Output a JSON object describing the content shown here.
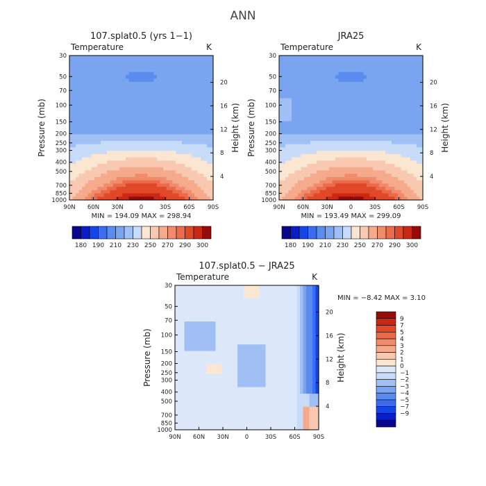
{
  "title": "ANN",
  "colors": {
    "abs_palette": [
      "#08088c",
      "#0a1ec8",
      "#1446e6",
      "#3c6cf0",
      "#5a8cf0",
      "#78a4f0",
      "#a0c0f5",
      "#c8dcfa",
      "#fbe6d2",
      "#f8c8b0",
      "#f5aa8c",
      "#f08c6c",
      "#eb6a4a",
      "#e04828",
      "#c82814",
      "#960a0a"
    ],
    "diff_palette": [
      "#08088c",
      "#0a1ec8",
      "#1446e6",
      "#3c6cf0",
      "#5a8cf0",
      "#78a4f0",
      "#a0c0f5",
      "#c8dcfa",
      "#dce8fa",
      "#fbe6d2",
      "#f8c8b0",
      "#f5aa8c",
      "#f08c6c",
      "#eb6a4a",
      "#e04828",
      "#c82814",
      "#960a0a"
    ]
  },
  "chart_data": [
    {
      "type": "heatmap",
      "title": "107.splat0.5 (yrs 1−1)",
      "left_label": "Temperature",
      "right_label": "K",
      "xlabel": "",
      "ylabel": "Pressure (mb)",
      "ylabel_right": "Height (km)",
      "x_ticks": [
        "90N",
        "60N",
        "30N",
        "0",
        "30S",
        "60S",
        "90S"
      ],
      "y_ticks": [
        "30",
        "50",
        "70",
        "100",
        "150",
        "200",
        "250",
        "300",
        "400",
        "500",
        "700",
        "850",
        "1000"
      ],
      "y_ticks_right": [
        "20",
        "16",
        "12",
        "8",
        "4"
      ],
      "stats": "MIN = 194.09   MAX = 298.94",
      "min": 194.09,
      "max": 298.94,
      "colorbar_labels": [
        "180",
        "190",
        "210",
        "230",
        "250",
        "270",
        "290",
        "300"
      ]
    },
    {
      "type": "heatmap",
      "title": "JRA25",
      "left_label": "Temperature",
      "right_label": "K",
      "xlabel": "",
      "ylabel": "Pressure (mb)",
      "ylabel_right": "Height (km)",
      "x_ticks": [
        "90N",
        "60N",
        "30N",
        "0",
        "30S",
        "60S",
        "90S"
      ],
      "y_ticks": [
        "30",
        "50",
        "70",
        "100",
        "150",
        "200",
        "250",
        "300",
        "400",
        "500",
        "700",
        "850",
        "1000"
      ],
      "y_ticks_right": [
        "20",
        "16",
        "12",
        "8",
        "4"
      ],
      "stats": "MIN = 193.49   MAX = 299.09",
      "min": 193.49,
      "max": 299.09,
      "colorbar_labels": [
        "180",
        "190",
        "210",
        "230",
        "250",
        "270",
        "290",
        "300"
      ]
    },
    {
      "type": "heatmap",
      "title": "107.splat0.5 − JRA25",
      "left_label": "Temperature",
      "right_label": "K",
      "xlabel": "",
      "ylabel": "Pressure (mb)",
      "ylabel_right": "Height (km)",
      "x_ticks": [
        "90N",
        "60N",
        "30N",
        "0",
        "30S",
        "60S",
        "90S"
      ],
      "y_ticks": [
        "30",
        "50",
        "70",
        "100",
        "150",
        "200",
        "250",
        "300",
        "400",
        "500",
        "700",
        "850",
        "1000"
      ],
      "y_ticks_right": [
        "20",
        "16",
        "12",
        "8",
        "4"
      ],
      "stats": "MIN =  −8.42   MAX =    3.10",
      "min": -8.42,
      "max": 3.1,
      "colorbar_labels": [
        "9",
        "7",
        "5",
        "4",
        "3",
        "2",
        "1",
        "0",
        "−1",
        "−2",
        "−3",
        "−4",
        "−5",
        "−7",
        "−9"
      ]
    }
  ]
}
